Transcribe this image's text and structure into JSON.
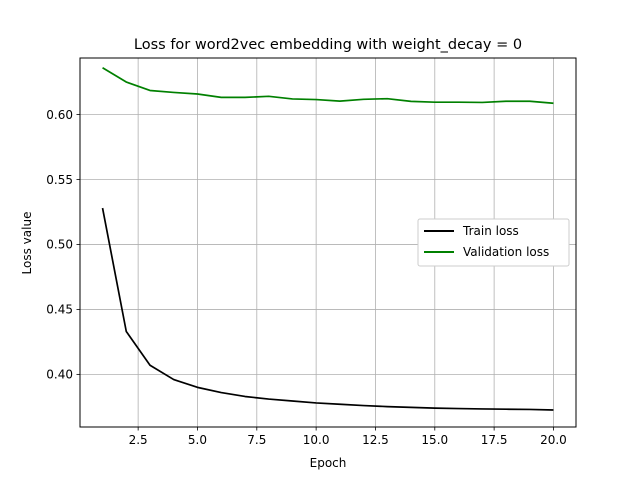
{
  "chart_data": {
    "type": "line",
    "title": "Loss for word2vec embedding with weight_decay = 0",
    "xlabel": "Epoch",
    "ylabel": "Loss value",
    "xlim": [
      0.05,
      20.95
    ],
    "ylim": [
      0.3595,
      0.6435
    ],
    "xticks": [
      2.5,
      5.0,
      7.5,
      10.0,
      12.5,
      15.0,
      17.5,
      20.0
    ],
    "xtick_labels": [
      "2.5",
      "5.0",
      "7.5",
      "10.0",
      "12.5",
      "15.0",
      "17.5",
      "20.0"
    ],
    "yticks": [
      0.4,
      0.45,
      0.5,
      0.55,
      0.6
    ],
    "ytick_labels": [
      "0.40",
      "0.45",
      "0.50",
      "0.55",
      "0.60"
    ],
    "grid": true,
    "legend_position": "center-right",
    "x": [
      1,
      2,
      3,
      4,
      5,
      6,
      7,
      8,
      9,
      10,
      11,
      12,
      13,
      14,
      15,
      16,
      17,
      18,
      19,
      20
    ],
    "series": [
      {
        "name": "Train loss",
        "color": "#000000",
        "values": [
          0.528,
          0.433,
          0.407,
          0.396,
          0.39,
          0.386,
          0.383,
          0.381,
          0.3795,
          0.378,
          0.377,
          0.376,
          0.3752,
          0.3746,
          0.374,
          0.3737,
          0.3734,
          0.3732,
          0.373,
          0.3726
        ]
      },
      {
        "name": "Validation loss",
        "color": "#008000",
        "values": [
          0.636,
          0.625,
          0.6185,
          0.617,
          0.6158,
          0.6132,
          0.6132,
          0.614,
          0.612,
          0.6115,
          0.6103,
          0.6117,
          0.6122,
          0.6101,
          0.6095,
          0.6095,
          0.6093,
          0.6102,
          0.6102,
          0.6087
        ]
      }
    ]
  }
}
